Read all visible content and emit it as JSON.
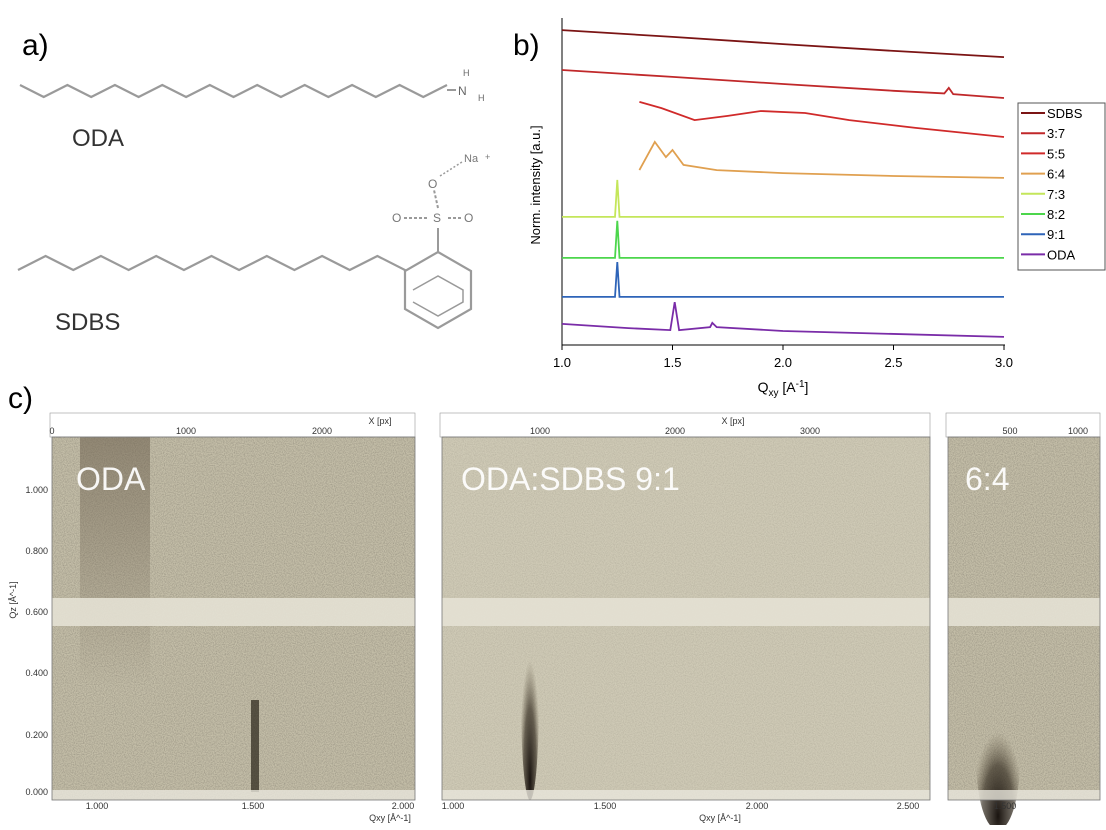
{
  "panel_a": {
    "label": "a)",
    "molecules": [
      {
        "name": "ODA",
        "atom_labels": [
          "H",
          "N",
          "H"
        ]
      },
      {
        "name": "SDBS",
        "atom_labels": [
          "Na",
          "+",
          "O",
          "O",
          "S",
          "O"
        ]
      }
    ]
  },
  "panel_b_label": "b)",
  "chart_data": {
    "type": "line",
    "ylabel": "Norm. intensity [a.u.]",
    "xlabel_parts": [
      "Q",
      "xy",
      " [A",
      "-1",
      "]"
    ],
    "xlim": [
      1.0,
      3.0
    ],
    "xticks": [
      {
        "value": 1.0,
        "label": "1.0"
      },
      1.5,
      {
        "value": 2.0,
        "label": "2.0"
      },
      2.5,
      {
        "value": 3.0,
        "label": "3.0"
      }
    ],
    "ylim": [
      0,
      10
    ],
    "legend": "right",
    "series": [
      {
        "name": "SDBS",
        "color": "#7b1414",
        "x": [
          1.0,
          1.5,
          2.0,
          2.5,
          3.0
        ],
        "values": [
          9.69,
          9.48,
          9.26,
          9.05,
          8.86
        ]
      },
      {
        "name": "3:7",
        "color": "#c0282a",
        "x": [
          1.0,
          1.5,
          2.0,
          2.5,
          2.73,
          2.75,
          2.77,
          3.0
        ],
        "values": [
          8.46,
          8.25,
          8.03,
          7.82,
          7.74,
          7.91,
          7.72,
          7.6
        ]
      },
      {
        "name": "5:5",
        "color": "#d02a2a",
        "x": [
          1.35,
          1.45,
          1.6,
          1.75,
          1.9,
          2.1,
          2.3,
          2.6,
          3.0
        ],
        "values": [
          7.48,
          7.29,
          6.92,
          7.05,
          7.2,
          7.14,
          6.92,
          6.68,
          6.4
        ]
      },
      {
        "name": "6:4",
        "color": "#e0a050",
        "x": [
          1.35,
          1.42,
          1.47,
          1.5,
          1.55,
          1.7,
          2.0,
          2.5,
          3.0
        ],
        "values": [
          5.38,
          6.25,
          5.78,
          6.0,
          5.54,
          5.38,
          5.29,
          5.2,
          5.14
        ]
      },
      {
        "name": "7:3",
        "color": "#c4e65a",
        "x": [
          1.0,
          1.24,
          1.25,
          1.26,
          3.0
        ],
        "values": [
          3.94,
          3.94,
          5.08,
          3.94,
          3.94
        ]
      },
      {
        "name": "8:2",
        "color": "#4cd64c",
        "x": [
          1.0,
          1.24,
          1.25,
          1.26,
          3.0
        ],
        "values": [
          2.68,
          2.68,
          3.82,
          2.68,
          2.68
        ]
      },
      {
        "name": "9:1",
        "color": "#2e64b8",
        "x": [
          1.0,
          1.24,
          1.25,
          1.26,
          3.0
        ],
        "values": [
          1.48,
          1.48,
          2.55,
          1.48,
          1.48
        ]
      },
      {
        "name": "ODA",
        "color": "#7a2ca8",
        "x": [
          1.0,
          1.3,
          1.49,
          1.51,
          1.53,
          1.67,
          1.68,
          1.7,
          2.0,
          3.0
        ],
        "values": [
          0.65,
          0.52,
          0.46,
          1.32,
          0.46,
          0.55,
          0.68,
          0.55,
          0.43,
          0.25
        ]
      }
    ]
  },
  "panel_c": {
    "label": "c)",
    "images": [
      {
        "title": "ODA",
        "x_axis_label": "X [px]",
        "top_ticks": [
          "0",
          "1000",
          "2000"
        ],
        "left_axis_label": "Qz [Å^-1]",
        "left_ticks": [
          "1.000",
          "0.800",
          "0.600",
          "0.400",
          "0.200",
          "0.000"
        ],
        "bottom_ticks": [
          "1.000",
          "1.500",
          "2.000"
        ],
        "bottom_axis_label": "Qxy [Å^-1]"
      },
      {
        "title": "ODA:SDBS 9:1",
        "x_axis_label": "X [px]",
        "top_ticks": [
          "1000",
          "2000",
          "3000"
        ],
        "bottom_ticks": [
          "1.000",
          "1.500",
          "2.000",
          "2.500"
        ],
        "bottom_axis_label": "Qxy [Å^-1]"
      },
      {
        "title": "6:4",
        "top_ticks": [
          "500",
          "1000"
        ],
        "bottom_ticks": [
          "1.500"
        ]
      }
    ]
  }
}
